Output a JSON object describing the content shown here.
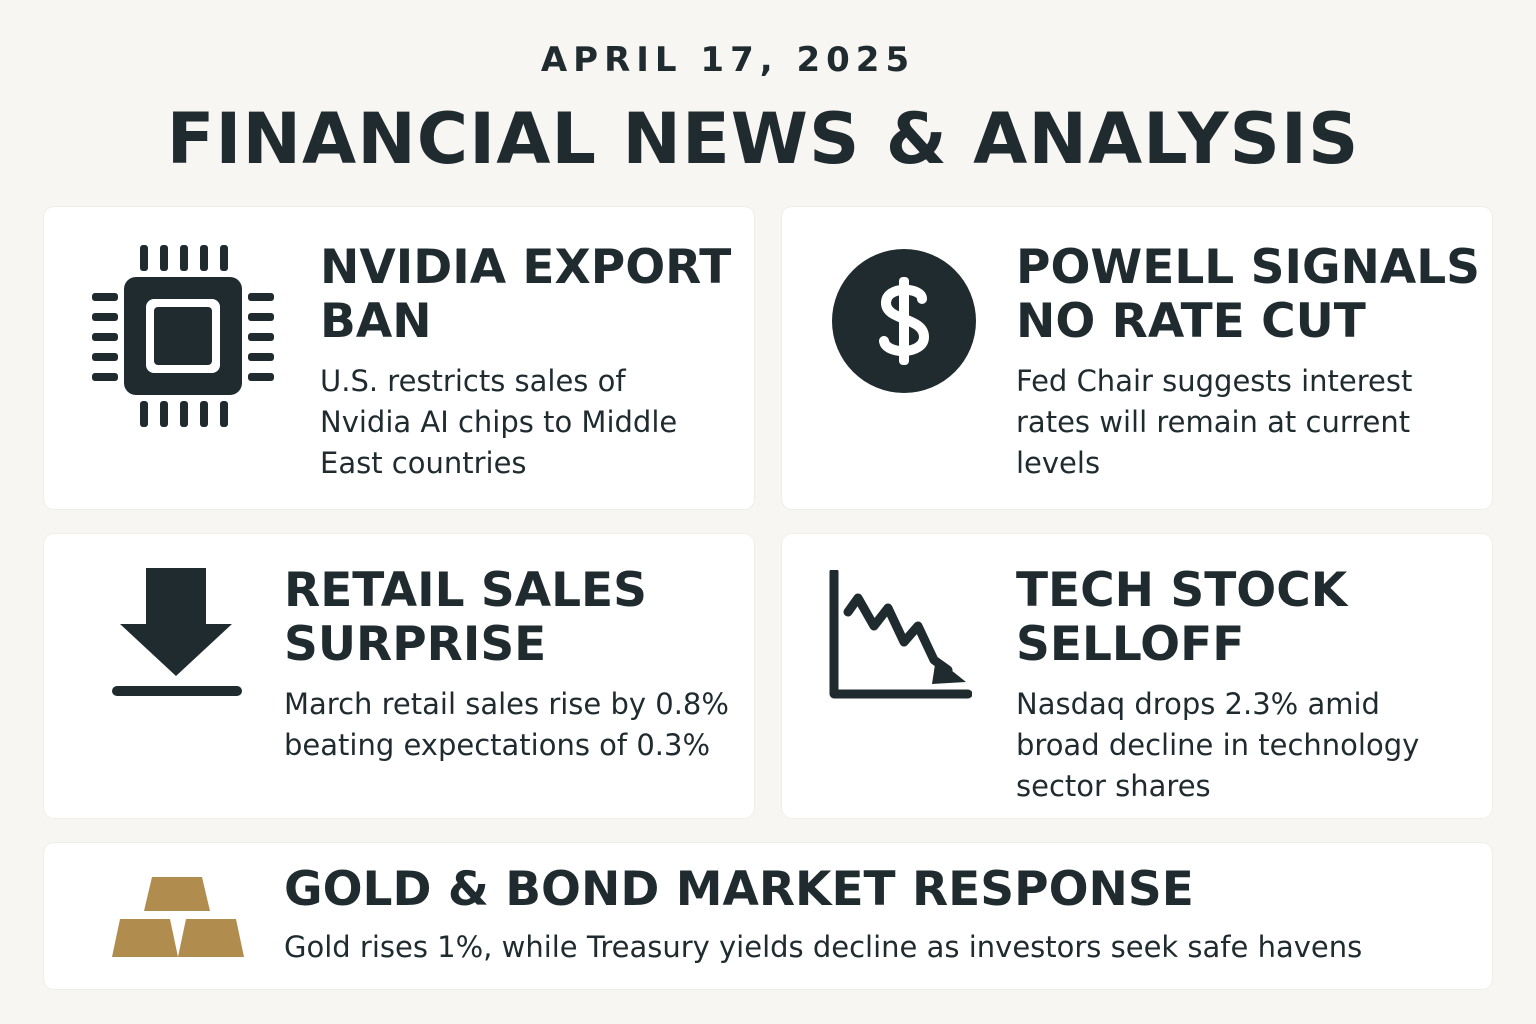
{
  "header": {
    "date": "APRIL 17, 2025",
    "title": "FINANCIAL NEWS & ANALYSIS"
  },
  "cards": {
    "nvidia": {
      "icon": "chip-icon",
      "title_line1": "NVIDIA EXPORT",
      "title_line2": "BAN",
      "desc_line1": "U.S. restricts sales of",
      "desc_line2": "Nvidia AI chips to Middle",
      "desc_line3": "East countries"
    },
    "powell": {
      "icon": "dollar-icon",
      "title_line1": "POWELL SIGNALS",
      "title_line2": "NO RATE CUT",
      "desc_line1": "Fed Chair suggests interest",
      "desc_line2": "rates will remain at current",
      "desc_line3": "levels"
    },
    "retail": {
      "icon": "download-arrow-icon",
      "title_line1": "RETAIL SALES",
      "title_line2": "SURPRISE",
      "desc_line1": "March retail sales rise by 0.8%",
      "desc_line2": "beating expectations of 0.3%"
    },
    "tech": {
      "icon": "declining-chart-icon",
      "title_line1": "TECH STOCK",
      "title_line2": "SELLOFF",
      "desc_line1": "Nasdaq drops 2.3% amid",
      "desc_line2": "broad decline in technology",
      "desc_line3": "sector shares"
    },
    "gold": {
      "icon": "gold-bars-icon",
      "title": "GOLD & BOND MARKET RESPONSE",
      "desc": "Gold rises 1%, while Treasury yields decline as investors seek safe havens"
    }
  },
  "colors": {
    "background": "#f7f6f2",
    "card": "#ffffff",
    "ink": "#1f2b2f",
    "gold": "#b08d4f"
  }
}
